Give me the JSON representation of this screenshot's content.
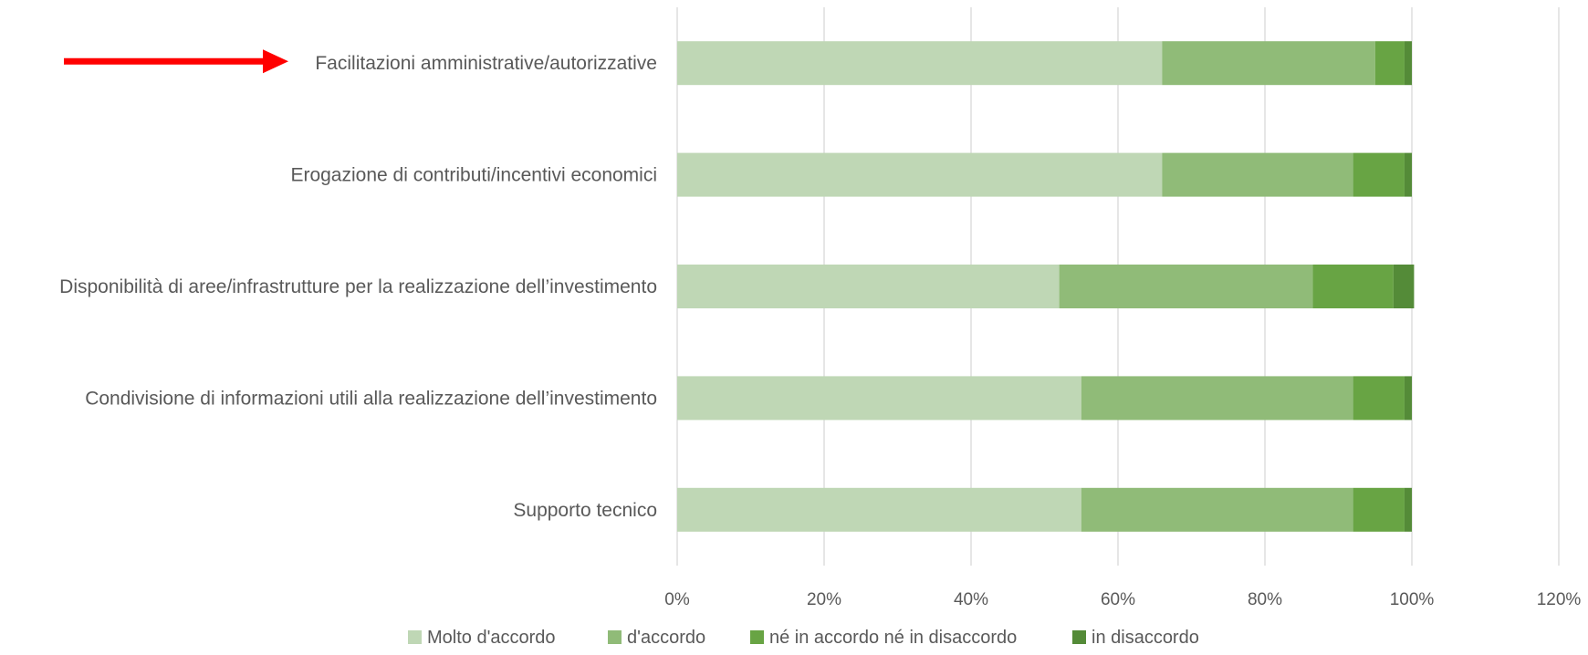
{
  "chart_data": {
    "type": "bar",
    "orientation": "horizontal",
    "stacked": true,
    "categories": [
      "Facilitazioni amministrative/autorizzative",
      "Erogazione di contributi/incentivi economici",
      "Disponibilità di aree/infrastrutture per la realizzazione dell’investimento",
      "Condivisione di informazioni utili alla realizzazione dell’investimento",
      "Supporto tecnico"
    ],
    "series": [
      {
        "name": "Molto d'accordo",
        "color": "#bfd7b5",
        "values": [
          0.66,
          0.66,
          0.52,
          0.55,
          0.55
        ]
      },
      {
        "name": "d'accordo",
        "color": "#90bb78",
        "values": [
          0.29,
          0.26,
          0.345,
          0.37,
          0.37
        ]
      },
      {
        "name": "né in accordo né in disaccordo",
        "color": "#68a444",
        "values": [
          0.04,
          0.07,
          0.11,
          0.07,
          0.07
        ]
      },
      {
        "name": "in disaccordo",
        "color": "#548b38",
        "values": [
          0.01,
          0.01,
          0.028,
          0.01,
          0.01
        ]
      }
    ],
    "xlim": [
      0,
      1.2
    ],
    "xticks": [
      "0%",
      "20%",
      "40%",
      "60%",
      "80%",
      "100%",
      "120%"
    ],
    "grid": true,
    "legend_position": "bottom",
    "annotation": {
      "type": "arrow",
      "color": "#ff0000",
      "points_to": "Facilitazioni amministrative/autorizzative"
    }
  }
}
